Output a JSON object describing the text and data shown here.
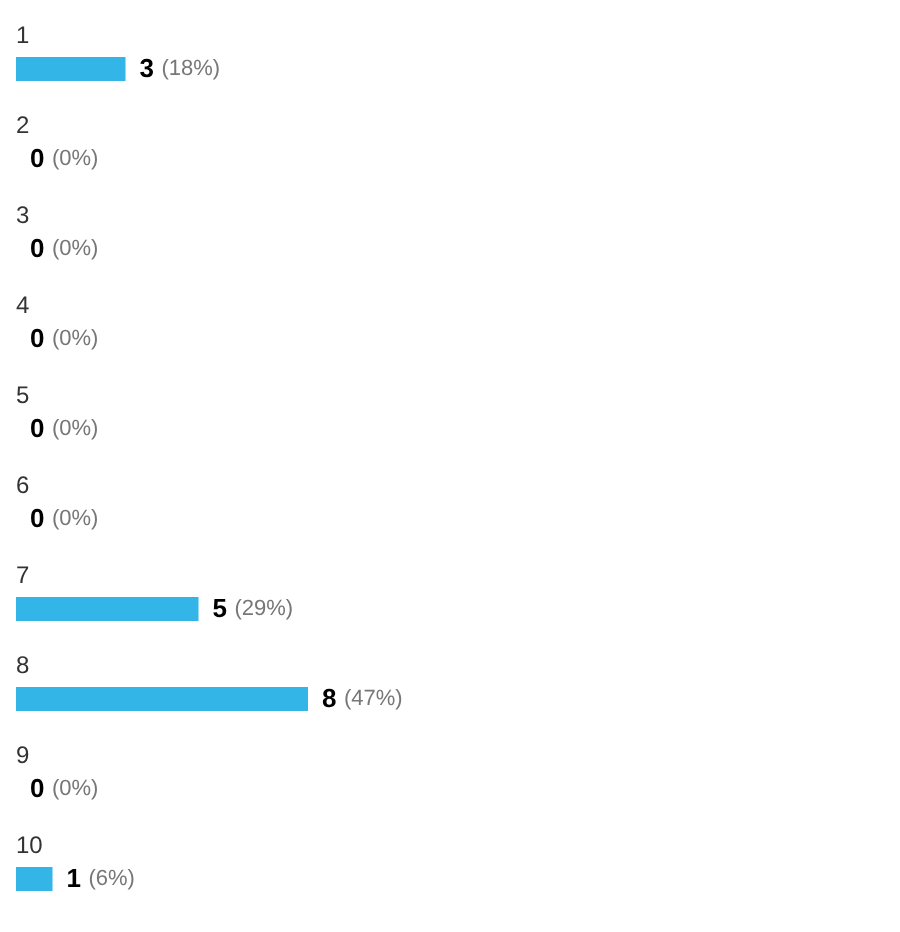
{
  "chart_data": {
    "type": "bar",
    "orientation": "horizontal",
    "categories": [
      "1",
      "2",
      "3",
      "4",
      "5",
      "6",
      "7",
      "8",
      "9",
      "10"
    ],
    "values": [
      3,
      0,
      0,
      0,
      0,
      0,
      5,
      8,
      0,
      1
    ],
    "data_labels": true,
    "annotations": [
      {
        "text": "(18%)",
        "x": 3,
        "y": "1"
      },
      {
        "text": "(0%)",
        "x": 0,
        "y": "2"
      },
      {
        "text": "(0%)",
        "x": 0,
        "y": "3"
      },
      {
        "text": "(0%)",
        "x": 0,
        "y": "4"
      },
      {
        "text": "(0%)",
        "x": 0,
        "y": "5"
      },
      {
        "text": "(0%)",
        "x": 0,
        "y": "6"
      },
      {
        "text": "(29%)",
        "x": 5,
        "y": "7"
      },
      {
        "text": "(47%)",
        "x": 8,
        "y": "8"
      },
      {
        "text": "(0%)",
        "x": 0,
        "y": "9"
      },
      {
        "text": "(6%)",
        "x": 1,
        "y": "10"
      }
    ],
    "color": "#33b5e8"
  }
}
